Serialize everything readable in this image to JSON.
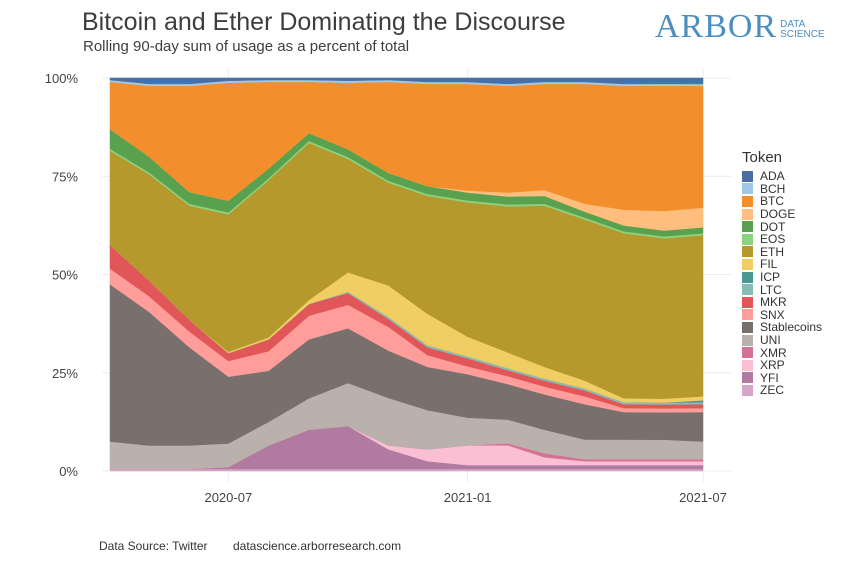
{
  "header": {
    "title": "Bitcoin and Ether Dominating the Discourse",
    "subtitle": "Rolling 90-day sum of usage as a percent of total"
  },
  "logo": {
    "word": "ARBOR",
    "sub_line1": "DATA",
    "sub_line2": "SCIENCE",
    "color": "#4b8fc1"
  },
  "footer": {
    "source": "Data Source: Twitter",
    "url": "datascience.arborresearch.com"
  },
  "legend": {
    "title": "Token",
    "items": [
      {
        "name": "ADA",
        "color": "#4a6fa5"
      },
      {
        "name": "BCH",
        "color": "#9fc8e6"
      },
      {
        "name": "BTC",
        "color": "#f28e2b"
      },
      {
        "name": "DOGE",
        "color": "#ffbe7d"
      },
      {
        "name": "DOT",
        "color": "#59a14f"
      },
      {
        "name": "EOS",
        "color": "#8cd17d"
      },
      {
        "name": "ETH",
        "color": "#b6992d"
      },
      {
        "name": "FIL",
        "color": "#f1ce63"
      },
      {
        "name": "ICP",
        "color": "#499894"
      },
      {
        "name": "LTC",
        "color": "#86bcb6"
      },
      {
        "name": "MKR",
        "color": "#e15759"
      },
      {
        "name": "SNX",
        "color": "#ff9d9a"
      },
      {
        "name": "Stablecoins",
        "color": "#79706e"
      },
      {
        "name": "UNI",
        "color": "#bab0ac"
      },
      {
        "name": "XMR",
        "color": "#d37295"
      },
      {
        "name": "XRP",
        "color": "#fabfd2"
      },
      {
        "name": "YFI",
        "color": "#b07aa1"
      },
      {
        "name": "ZEC",
        "color": "#d4a6c8"
      }
    ]
  },
  "chart_data": {
    "type": "area",
    "stacked": true,
    "title": "Bitcoin and Ether Dominating the Discourse",
    "subtitle": "Rolling 90-day sum of usage as a percent of total",
    "xlabel": "",
    "ylabel": "",
    "x_ticks": [
      "2020-07",
      "2021-01",
      "2021-07"
    ],
    "y_ticks": [
      "0%",
      "25%",
      "50%",
      "75%",
      "100%"
    ],
    "ylim": [
      0,
      100
    ],
    "x": [
      "2020-04-01",
      "2020-05-01",
      "2020-06-01",
      "2020-07-01",
      "2020-08-01",
      "2020-09-01",
      "2020-10-01",
      "2020-11-01",
      "2020-12-01",
      "2021-01-01",
      "2021-02-01",
      "2021-03-01",
      "2021-04-01",
      "2021-05-01",
      "2021-06-01",
      "2021-07-01"
    ],
    "series": [
      {
        "name": "ZEC",
        "values": [
          0.5,
          0.5,
          0.5,
          0.5,
          0.5,
          0.5,
          0.5,
          0.5,
          0.5,
          0.5,
          0.5,
          0.5,
          0.5,
          0.5,
          0.5,
          0.5
        ]
      },
      {
        "name": "YFI",
        "values": [
          0,
          0,
          0,
          0.5,
          6,
          10,
          11,
          5,
          2,
          1,
          1,
          1,
          1,
          1,
          1,
          1
        ]
      },
      {
        "name": "XRP",
        "values": [
          0,
          0,
          0,
          0,
          0,
          0,
          0,
          1,
          3,
          5,
          5,
          2,
          1,
          1,
          1,
          1
        ]
      },
      {
        "name": "XMR",
        "values": [
          0,
          0,
          0,
          0,
          0,
          0,
          0,
          0,
          0,
          0,
          0.5,
          1,
          0.5,
          0.5,
          0.5,
          0.5
        ]
      },
      {
        "name": "UNI",
        "values": [
          7,
          6,
          6,
          6,
          6,
          8,
          11,
          12,
          10,
          7,
          6,
          6,
          5,
          5,
          5,
          4.5
        ]
      },
      {
        "name": "Stablecoins",
        "values": [
          40,
          34,
          25,
          17,
          13,
          15,
          14,
          12,
          11,
          11,
          9,
          9,
          9,
          7,
          7,
          7.5
        ]
      },
      {
        "name": "SNX",
        "values": [
          4,
          4,
          4,
          4,
          5,
          6,
          6,
          6,
          3,
          2,
          2,
          2,
          2,
          1,
          1,
          1
        ]
      },
      {
        "name": "MKR",
        "values": [
          6,
          4,
          3,
          2,
          3,
          3,
          3,
          2,
          2,
          2,
          1.5,
          1.5,
          1.5,
          1,
          1,
          1
        ]
      },
      {
        "name": "LTC",
        "values": [
          0,
          0,
          0,
          0,
          0,
          0,
          0.3,
          0.5,
          0.5,
          0.5,
          0.5,
          0.5,
          0.5,
          0.5,
          0.5,
          0.5
        ]
      },
      {
        "name": "ICP",
        "values": [
          0,
          0,
          0,
          0,
          0,
          0,
          0,
          0,
          0,
          0,
          0,
          0,
          0,
          0,
          0,
          0.5
        ]
      },
      {
        "name": "FIL",
        "values": [
          0,
          0,
          0,
          0.3,
          0.5,
          1,
          5,
          8,
          8,
          5,
          4,
          3,
          2,
          1,
          1,
          1
        ]
      },
      {
        "name": "ETH",
        "values": [
          24,
          27,
          29,
          35,
          40,
          40,
          29,
          26,
          30,
          34,
          37,
          41,
          41,
          42,
          41,
          41
        ]
      },
      {
        "name": "EOS",
        "values": [
          0.5,
          0.5,
          0.5,
          0.5,
          0.5,
          0.5,
          0.5,
          0.5,
          0.5,
          0.5,
          0.5,
          0.5,
          0.5,
          0.5,
          0.5,
          0.5
        ]
      },
      {
        "name": "DOT",
        "values": [
          5,
          4,
          3,
          3,
          2.5,
          2,
          2,
          2,
          2,
          2,
          2,
          2,
          1.5,
          1.5,
          1.5,
          1.5
        ]
      },
      {
        "name": "DOGE",
        "values": [
          0,
          0,
          0,
          0,
          0,
          0,
          0,
          0,
          0,
          0.5,
          1,
          1.5,
          2,
          4,
          5,
          5
        ]
      },
      {
        "name": "BTC",
        "values": [
          12,
          18,
          27,
          30,
          22,
          13,
          17,
          23,
          26,
          27,
          27,
          27,
          30.5,
          31.5,
          32,
          31
        ]
      },
      {
        "name": "BCH",
        "values": [
          0.5,
          0.5,
          0.5,
          0.5,
          0.5,
          0.5,
          0.5,
          0.5,
          0.5,
          0.5,
          0.5,
          0.5,
          0.5,
          0.5,
          0.5,
          0.5
        ]
      },
      {
        "name": "ADA",
        "values": [
          0.5,
          1.5,
          1.5,
          0.7,
          0.5,
          0.5,
          0.7,
          0.5,
          1,
          1,
          1.5,
          1,
          1,
          1.5,
          1.5,
          1.5
        ]
      }
    ]
  }
}
